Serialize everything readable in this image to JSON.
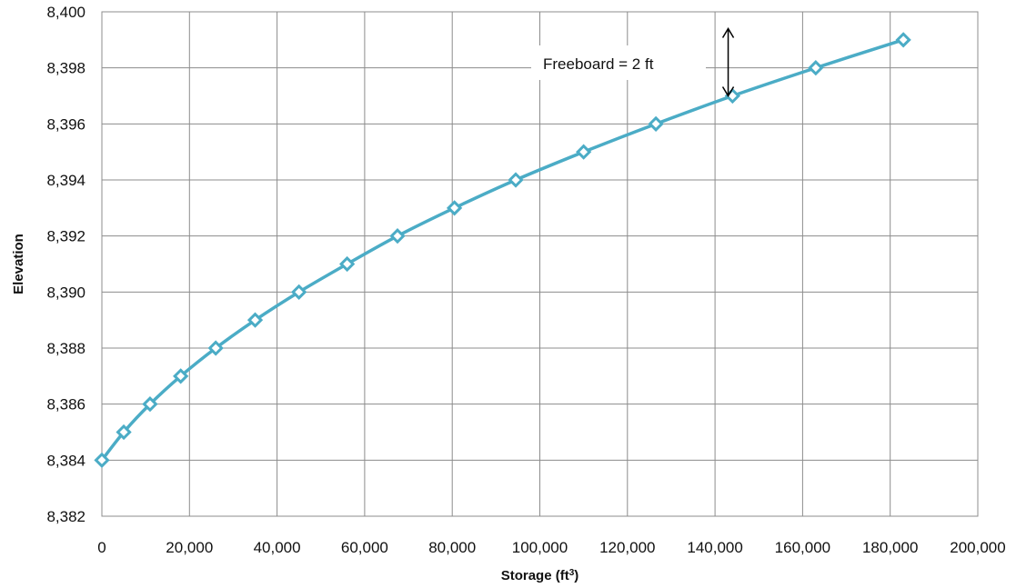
{
  "chart_data": {
    "type": "line",
    "xlabel": "Storage (ft",
    "xlabel_superscript": "3",
    "xlabel_suffix": ")",
    "ylabel": "Elevation",
    "xlim": [
      0,
      200000
    ],
    "ylim": [
      8382,
      8400
    ],
    "x_ticks": [
      0,
      20000,
      40000,
      60000,
      80000,
      100000,
      120000,
      140000,
      160000,
      180000,
      200000
    ],
    "x_tick_labels": [
      "0",
      "20,000",
      "40,000",
      "60,000",
      "80,000",
      "100,000",
      "120,000",
      "140,000",
      "160,000",
      "180,000",
      "200,000"
    ],
    "y_ticks": [
      8382,
      8384,
      8386,
      8388,
      8390,
      8392,
      8394,
      8396,
      8398,
      8400
    ],
    "y_tick_labels": [
      "8,382",
      "8,384",
      "8,386",
      "8,388",
      "8,390",
      "8,392",
      "8,394",
      "8,396",
      "8,398",
      "8,400"
    ],
    "grid": true,
    "marker": "diamond",
    "series_color": "#4BACC6",
    "series": [
      {
        "x": [
          0,
          5000,
          11000,
          18000,
          26000,
          35000,
          45000,
          56000,
          67500,
          80500,
          94500,
          110000,
          126500,
          144000,
          163000,
          183000
        ],
        "y": [
          8384,
          8385,
          8386,
          8387,
          8388,
          8389,
          8390,
          8391,
          8392,
          8393,
          8394,
          8395,
          8396,
          8397,
          8398,
          8399
        ]
      }
    ],
    "annotation": {
      "text": "Freeboard = 2 ft",
      "x": 143000,
      "y_from": 8397,
      "y_to": 8399.4
    }
  }
}
